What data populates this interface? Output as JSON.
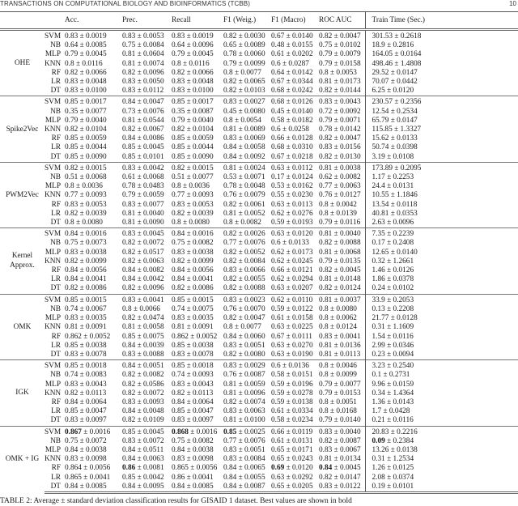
{
  "running_header": "TRANSACTIONS ON COMPUTATIONAL BIOLOGY AND BIOINFORMATICS (TCBB)",
  "page_number": "10",
  "table": {
    "columns": [
      "",
      "",
      "Acc.",
      "Prec.",
      "Recall",
      "F1 (Weig.)",
      "F1 (Macro)",
      "ROC AUC",
      "Train Time (Sec.)"
    ],
    "groups": [
      {
        "label": "OHE",
        "rows": [
          {
            "method": "SVM",
            "cells": [
              "0.83 ± 0.0019",
              "0.83 ± 0.0053",
              "0.83 ± 0.0019",
              "0.82 ± 0.0030",
              "0.67 ± 0.0140",
              "0.82 ± 0.0047",
              "301.53 ± 0.2618"
            ]
          },
          {
            "method": "NB",
            "cells": [
              "0.64 ± 0.0085",
              "0.75 ± 0.0084",
              "0.64 ± 0.0096",
              "0.65 ± 0.0089",
              "0.48 ± 0.0155",
              "0.75 ± 0.0102",
              "18.9 ± 0.2816"
            ]
          },
          {
            "method": "MLP",
            "cells": [
              "0.79 ± 0.0045",
              "0.81 ± 0.0604",
              "0.79 ± 0.0045",
              "0.78 ± 0.0060",
              "0.61 ± 0.0202",
              "0.79 ± 0.0079",
              "164.05 ± 0.0164"
            ]
          },
          {
            "method": "KNN",
            "cells": [
              "0.8 ± 0.0116",
              "0.81 ± 0.0074",
              "0.8 ± 0.0116",
              "0.79 ± 0.0099",
              "0.6 ± 0.0287",
              "0.79 ± 0.0158",
              "498.46 ± 1.4808"
            ]
          },
          {
            "method": "RF",
            "cells": [
              "0.82 ± 0.0066",
              "0.82 ± 0.0096",
              "0.82 ± 0.0066",
              "0.8 ± 0.0077",
              "0.64 ± 0.0142",
              "0.8 ± 0.0053",
              "29.52 ± 0.0147"
            ]
          },
          {
            "method": "LR",
            "cells": [
              "0.83 ± 0.0048",
              "0.83 ± 0.0050",
              "0.83 ± 0.0048",
              "0.82 ± 0.0065",
              "0.67 ± 0.0344",
              "0.81 ± 0.0173",
              "70.07 ± 0.0442"
            ]
          },
          {
            "method": "DT",
            "cells": [
              "0.83 ± 0.0100",
              "0.83 ± 0.0112",
              "0.83 ± 0.0100",
              "0.82 ± 0.0103",
              "0.68 ± 0.0242",
              "0.82 ± 0.0144",
              "6.25 ± 0.0120"
            ]
          }
        ]
      },
      {
        "label": "Spike2Vec",
        "rows": [
          {
            "method": "SVM",
            "cells": [
              "0.85 ± 0.0017",
              "0.84 ± 0.0047",
              "0.85 ± 0.0017",
              "0.83 ± 0.0027",
              "0.68 ± 0.0126",
              "0.83 ± 0.0043",
              "230.57 ± 0.2356"
            ]
          },
          {
            "method": "NB",
            "cells": [
              "0.35 ± 0.0077",
              "0.73 ± 0.0076",
              "0.35 ± 0.0087",
              "0.45 ± 0.0080",
              "0.45 ± 0.0140",
              "0.72 ± 0.0092",
              "12.54 ± 0.2534"
            ]
          },
          {
            "method": "MLP",
            "cells": [
              "0.79 ± 0.0040",
              "0.81 ± 0.0544",
              "0.79 ± 0.0040",
              "0.8 ± 0.0054",
              "0.58 ± 0.0182",
              "0.79 ± 0.0071",
              "65.79 ± 0.0147"
            ]
          },
          {
            "method": "KNN",
            "cells": [
              "0.82 ± 0.0104",
              "0.82 ± 0.0067",
              "0.82 ± 0.0104",
              "0.81 ± 0.0089",
              "0.6 ± 0.0258",
              "0.78 ± 0.0142",
              "115.85 ± 1.3327"
            ]
          },
          {
            "method": "RF",
            "cells": [
              "0.85 ± 0.0059",
              "0.84 ± 0.0086",
              "0.85 ± 0.0059",
              "0.83 ± 0.0069",
              "0.66 ± 0.0128",
              "0.82 ± 0.0047",
              "15.62 ± 0.0133"
            ]
          },
          {
            "method": "LR",
            "cells": [
              "0.85 ± 0.0044",
              "0.85 ± 0.0045",
              "0.85 ± 0.0044",
              "0.84 ± 0.0058",
              "0.68 ± 0.0310",
              "0.83 ± 0.0156",
              "50.74 ± 0.0398"
            ]
          },
          {
            "method": "DT",
            "cells": [
              "0.85 ± 0.0090",
              "0.85 ± 0.0101",
              "0.85 ± 0.0090",
              "0.84 ± 0.0092",
              "0.67 ± 0.0218",
              "0.82 ± 0.0130",
              "3.19 ± 0.0108"
            ]
          }
        ]
      },
      {
        "label": "PWM2Vec",
        "rows": [
          {
            "method": "SVM",
            "cells": [
              "0.82 ± 0.0015",
              "0.83 ± 0.0042",
              "0.82 ± 0.0015",
              "0.81 ± 0.0024",
              "0.63 ± 0.0112",
              "0.81 ± 0.0038",
              "173.89 ± 0.2095"
            ]
          },
          {
            "method": "NB",
            "cells": [
              "0.51 ± 0.0068",
              "0.61 ± 0.0068",
              "0.51 ± 0.0077",
              "0.53 ± 0.0071",
              "0.17 ± 0.0124",
              "0.62 ± 0.0082",
              "1.17 ± 0.2253"
            ]
          },
          {
            "method": "MLP",
            "cells": [
              "0.8 ± 0.0036",
              "0.78 ± 0.0483",
              "0.8 ± 0.0036",
              "0.78 ± 0.0048",
              "0.53 ± 0.0162",
              "0.77 ± 0.0063",
              "24.4 ± 0.0131"
            ]
          },
          {
            "method": "KNN",
            "cells": [
              "0.77 ± 0.0093",
              "0.79 ± 0.0059",
              "0.77 ± 0.0093",
              "0.76 ± 0.0079",
              "0.55 ± 0.0230",
              "0.76 ± 0.0127",
              "10.55 ± 1.1846"
            ]
          },
          {
            "method": "RF",
            "cells": [
              "0.83 ± 0.0053",
              "0.83 ± 0.0077",
              "0.83 ± 0.0053",
              "0.82 ± 0.0061",
              "0.63 ± 0.0113",
              "0.8 ± 0.0042",
              "13.54 ± 0.0118"
            ]
          },
          {
            "method": "LR",
            "cells": [
              "0.82 ± 0.0039",
              "0.81 ± 0.0040",
              "0.82 ± 0.0039",
              "0.81 ± 0.0052",
              "0.62 ± 0.0276",
              "0.8 ± 0.0139",
              "40.81 ± 0.0353"
            ]
          },
          {
            "method": "DT",
            "cells": [
              "0.8 ± 0.0080",
              "0.81 ± 0.0090",
              "0.8 ± 0.0080",
              "0.8 ± 0.0082",
              "0.59 ± 0.0193",
              "0.79 ± 0.0116",
              "2.63 ± 0.0096"
            ]
          }
        ]
      },
      {
        "label": "Kernel Approx.",
        "rows": [
          {
            "method": "SVM",
            "cells": [
              "0.84 ± 0.0016",
              "0.83 ± 0.0045",
              "0.84 ± 0.0016",
              "0.82 ± 0.0026",
              "0.63 ± 0.0120",
              "0.81 ± 0.0040",
              "7.35 ± 0.2239"
            ]
          },
          {
            "method": "NB",
            "cells": [
              "0.75 ± 0.0073",
              "0.82 ± 0.0072",
              "0.75 ± 0.0082",
              "0.77 ± 0.0076",
              "0.6 ± 0.0133",
              "0.82 ± 0.0088",
              "0.17 ± 0.2408"
            ]
          },
          {
            "method": "MLP",
            "cells": [
              "0.83 ± 0.0038",
              "0.82 ± 0.0517",
              "0.83 ± 0.0038",
              "0.82 ± 0.0052",
              "0.62 ± 0.0173",
              "0.81 ± 0.0068",
              "12.65 ± 0.0140"
            ]
          },
          {
            "method": "KNN",
            "cells": [
              "0.82 ± 0.0099",
              "0.82 ± 0.0063",
              "0.82 ± 0.0099",
              "0.82 ± 0.0084",
              "0.62 ± 0.0245",
              "0.79 ± 0.0135",
              "0.32 ± 1.2661"
            ]
          },
          {
            "method": "RF",
            "cells": [
              "0.84 ± 0.0056",
              "0.84 ± 0.0082",
              "0.84 ± 0.0056",
              "0.83 ± 0.0066",
              "0.66 ± 0.0121",
              "0.82 ± 0.0045",
              "1.46 ± 0.0126"
            ]
          },
          {
            "method": "LR",
            "cells": [
              "0.84 ± 0.0041",
              "0.84 ± 0.0042",
              "0.84 ± 0.0041",
              "0.82 ± 0.0055",
              "0.62 ± 0.0294",
              "0.81 ± 0.0148",
              "1.86 ± 0.0378"
            ]
          },
          {
            "method": "DT",
            "cells": [
              "0.82 ± 0.0086",
              "0.82 ± 0.0096",
              "0.82 ± 0.0086",
              "0.82 ± 0.0088",
              "0.63 ± 0.0207",
              "0.82 ± 0.0124",
              "0.24 ± 0.0102"
            ]
          }
        ]
      },
      {
        "label": "OMK",
        "rows": [
          {
            "method": "SVM",
            "cells": [
              "0.85 ± 0.0015",
              "0.83 ± 0.0041",
              "0.85 ± 0.0015",
              "0.83 ± 0.0023",
              "0.62 ± 0.0110",
              "0.81 ± 0.0037",
              "33.9 ± 0.2053"
            ]
          },
          {
            "method": "NB",
            "cells": [
              "0.74 ± 0.0067",
              "0.8 ± 0.0066",
              "0.74 ± 0.0075",
              "0.76 ± 0.0070",
              "0.59 ± 0.0122",
              "0.8 ± 0.0080",
              "0.13 ± 0.2208"
            ]
          },
          {
            "method": "MLP",
            "cells": [
              "0.83 ± 0.0035",
              "0.82 ± 0.0474",
              "0.83 ± 0.0035",
              "0.82 ± 0.0047",
              "0.61 ± 0.0158",
              "0.8 ± 0.0062",
              "21.77 ± 0.0128"
            ]
          },
          {
            "method": "KNN",
            "cells": [
              "0.81 ± 0.0091",
              "0.81 ± 0.0058",
              "0.81 ± 0.0091",
              "0.8 ± 0.0077",
              "0.63 ± 0.0225",
              "0.8 ± 0.0124",
              "0.31 ± 1.1609"
            ]
          },
          {
            "method": "RF",
            "cells": [
              "0.862 ± 0.0052",
              "0.85 ± 0.0075",
              "0.862 ± 0.0052",
              "0.84 ± 0.0060",
              "0.67 ± 0.0111",
              "0.83 ± 0.0041",
              "1.54 ± 0.0116"
            ]
          },
          {
            "method": "LR",
            "cells": [
              "0.85 ± 0.0038",
              "0.84 ± 0.0039",
              "0.85 ± 0.0038",
              "0.83 ± 0.0051",
              "0.63 ± 0.0270",
              "0.81 ± 0.0136",
              "2.99 ± 0.0346"
            ]
          },
          {
            "method": "DT",
            "cells": [
              "0.83 ± 0.0078",
              "0.83 ± 0.0088",
              "0.83 ± 0.0078",
              "0.82 ± 0.0080",
              "0.63 ± 0.0190",
              "0.81 ± 0.0113",
              "0.23 ± 0.0094"
            ]
          }
        ]
      },
      {
        "label": "IGK",
        "rows": [
          {
            "method": "SVM",
            "cells": [
              "0.85 ± 0.0018",
              "0.84 ± 0.0051",
              "0.85 ± 0.0018",
              "0.83 ± 0.0029",
              "0.6 ± 0.0136",
              "0.8 ± 0.0046",
              "3.23 ± 0.2540"
            ]
          },
          {
            "method": "NB",
            "cells": [
              "0.74 ± 0.0083",
              "0.82 ± 0.0082",
              "0.74 ± 0.0093",
              "0.76 ± 0.0087",
              "0.58 ± 0.0151",
              "0.8 ± 0.0099",
              "0.1 ± 0.2731"
            ]
          },
          {
            "method": "MLP",
            "cells": [
              "0.83 ± 0.0043",
              "0.82 ± 0.0586",
              "0.83 ± 0.0043",
              "0.81 ± 0.0059",
              "0.59 ± 0.0196",
              "0.79 ± 0.0077",
              "9.96 ± 0.0159"
            ]
          },
          {
            "method": "KNN",
            "cells": [
              "0.82 ± 0.0113",
              "0.82 ± 0.0072",
              "0.82 ± 0.0113",
              "0.81 ± 0.0096",
              "0.59 ± 0.0278",
              "0.79 ± 0.0153",
              "0.34 ± 1.4364"
            ]
          },
          {
            "method": "RF",
            "cells": [
              "0.84 ± 0.0064",
              "0.83 ± 0.0093",
              "0.84 ± 0.0064",
              "0.82 ± 0.0074",
              "0.59 ± 0.0138",
              "0.8 ± 0.0051",
              "1.36 ± 0.0143"
            ]
          },
          {
            "method": "LR",
            "cells": [
              "0.85 ± 0.0047",
              "0.84 ± 0.0048",
              "0.85 ± 0.0047",
              "0.83 ± 0.0063",
              "0.61 ± 0.0334",
              "0.8 ± 0.0168",
              "1.7 ± 0.0428"
            ]
          },
          {
            "method": "DT",
            "cells": [
              "0.83 ± 0.0097",
              "0.82 ± 0.0109",
              "0.83 ± 0.0097",
              "0.81 ± 0.0100",
              "0.58 ± 0.0234",
              "0.79 ± 0.0140",
              "0.21 ± 0.0116"
            ]
          }
        ]
      },
      {
        "label": "OMK + IG",
        "rows": [
          {
            "method": "SVM",
            "cells": [
              "0.867 ± 0.0016",
              "0.85 ± 0.0045",
              "0.868 ± 0.0016",
              "0.85 ± 0.0025",
              "0.66 ± 0.0119",
              "0.83 ± 0.0040",
              "20.83 ± 0.2216"
            ],
            "bold": [
              0,
              2,
              3
            ]
          },
          {
            "method": "NB",
            "cells": [
              "0.75 ± 0.0072",
              "0.83 ± 0.0072",
              "0.75 ± 0.0082",
              "0.77 ± 0.0076",
              "0.61 ± 0.0131",
              "0.82 ± 0.0087",
              "0.09 ± 0.2384"
            ],
            "bold": [
              6
            ]
          },
          {
            "method": "MLP",
            "cells": [
              "0.84 ± 0.0038",
              "0.84 ± 0.0511",
              "0.84 ± 0.0038",
              "0.83 ± 0.0051",
              "0.65 ± 0.0171",
              "0.83 ± 0.0067",
              "13.26 ± 0.0138"
            ]
          },
          {
            "method": "KNN",
            "cells": [
              "0.83 ± 0.0098",
              "0.84 ± 0.0063",
              "0.83 ± 0.0098",
              "0.83 ± 0.0084",
              "0.65 ± 0.0243",
              "0.81 ± 0.0134",
              "0.31 ± 1.2534"
            ]
          },
          {
            "method": "RF",
            "cells": [
              "0.864 ± 0.0056",
              "0.86 ± 0.0081",
              "0.865 ± 0.0056",
              "0.84 ± 0.0065",
              "0.69 ± 0.0120",
              "0.84 ± 0.0045",
              "1.26 ± 0.0125"
            ],
            "bold": [
              1,
              4,
              5
            ]
          },
          {
            "method": "LR",
            "cells": [
              "0.865 ± 0.0041",
              "0.85 ± 0.0042",
              "0.86 ± 0.0041",
              "0.84 ± 0.0055",
              "0.63 ± 0.0292",
              "0.82 ± 0.0147",
              "2.08 ± 0.0374"
            ]
          },
          {
            "method": "DT",
            "cells": [
              "0.84 ± 0.0085",
              "0.84 ± 0.0095",
              "0.84 ± 0.0085",
              "0.84 ± 0.0087",
              "0.65 ± 0.0205",
              "0.83 ± 0.0122",
              "0.19 ± 0.0101"
            ]
          }
        ]
      }
    ]
  },
  "caption": "TABLE 2: Average ± standard deviation classification results for GISAID 1 dataset. Best values are shown in bold"
}
